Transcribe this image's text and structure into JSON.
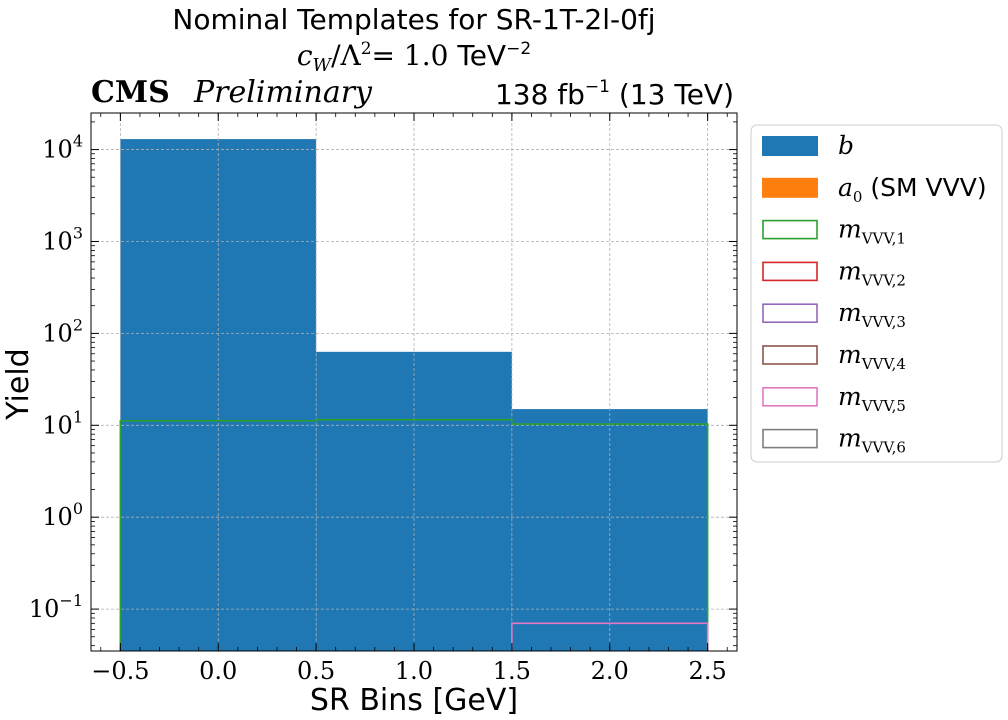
{
  "chart_data": {
    "type": "histogram",
    "title": {
      "line1": "Nominal Templates for SR-1T-2l-0fj",
      "line2_math": "c",
      "line2_sub": "W",
      "line2_rest": "/Λ",
      "line2_sup": "2",
      "line2_eq": "= 1.0 ",
      "line2_unit": "TeV",
      "line2_unit_sup": "−2"
    },
    "cms_label": "CMS",
    "cms_sublabel": "Preliminary",
    "lumi_label": "138 fb",
    "lumi_sup": "−1",
    "lumi_energy": "(13 TeV)",
    "xlabel": "SR Bins [GeV]",
    "ylabel": "Yield",
    "xlim": [
      -0.65,
      2.65
    ],
    "ylim": [
      0.035,
      25000
    ],
    "yscale": "log",
    "grid": true,
    "legend_position": "outside-right",
    "x_ticks": [
      -0.5,
      0.0,
      0.5,
      1.0,
      1.5,
      2.0,
      2.5
    ],
    "x_tick_labels": [
      "−0.5",
      "0.0",
      "0.5",
      "1.0",
      "1.5",
      "2.0",
      "2.5"
    ],
    "y_ticks": [
      {
        "value": 0.1,
        "base": "10",
        "exp": "−1"
      },
      {
        "value": 1,
        "base": "10",
        "exp": "0"
      },
      {
        "value": 10,
        "base": "10",
        "exp": "1"
      },
      {
        "value": 100,
        "base": "10",
        "exp": "2"
      },
      {
        "value": 1000,
        "base": "10",
        "exp": "3"
      },
      {
        "value": 10000,
        "base": "10",
        "exp": "4"
      }
    ],
    "bin_edges": [
      -0.5,
      0.5,
      1.5,
      2.5
    ],
    "series": [
      {
        "name": "b",
        "style": "filled",
        "color": "#1f77b4",
        "values": [
          13000,
          63,
          15
        ]
      },
      {
        "name": "a",
        "name_sub": "0",
        "name_extra": " (SM VVV)",
        "style": "filled",
        "color": "#ff7f0e",
        "values": [
          0,
          0,
          0
        ]
      },
      {
        "name": "m",
        "name_sub": "VVV,1",
        "style": "step",
        "color": "#2ca02c",
        "values": [
          11.2,
          11.5,
          10.3
        ]
      },
      {
        "name": "m",
        "name_sub": "VVV,2",
        "style": "step",
        "color": "#d62728",
        "values": [
          0,
          0,
          0
        ]
      },
      {
        "name": "m",
        "name_sub": "VVV,3",
        "style": "step",
        "color": "#9467bd",
        "values": [
          0,
          0,
          0
        ]
      },
      {
        "name": "m",
        "name_sub": "VVV,4",
        "style": "step",
        "color": "#8c564b",
        "values": [
          0,
          0,
          0
        ]
      },
      {
        "name": "m",
        "name_sub": "VVV,5",
        "style": "step",
        "color": "#e377c2",
        "values": [
          0,
          0,
          0.07
        ]
      },
      {
        "name": "m",
        "name_sub": "VVV,6",
        "style": "step",
        "color": "#7f7f7f",
        "values": [
          0,
          0,
          0
        ]
      }
    ]
  }
}
